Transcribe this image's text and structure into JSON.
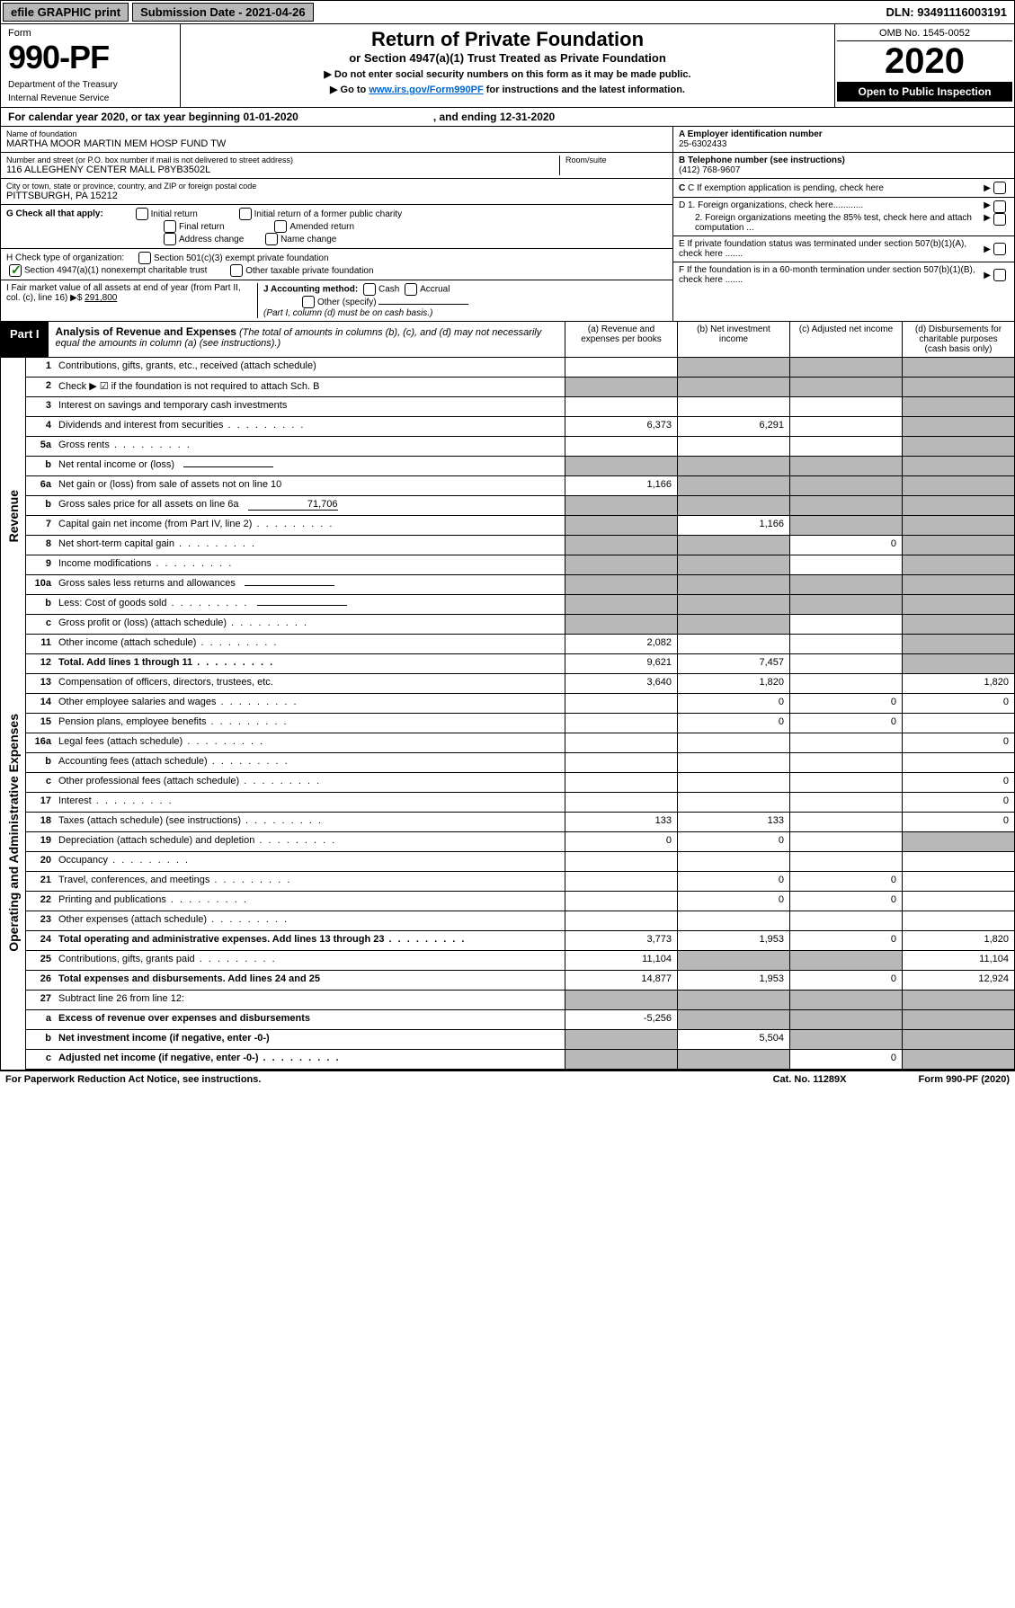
{
  "top": {
    "efile": "efile GRAPHIC print",
    "sub_date": "Submission Date - 2021-04-26",
    "dln": "DLN: 93491116003191"
  },
  "header": {
    "form_word": "Form",
    "form_num": "990-PF",
    "dept": "Department of the Treasury",
    "irs": "Internal Revenue Service",
    "title": "Return of Private Foundation",
    "subtitle": "or Section 4947(a)(1) Trust Treated as Private Foundation",
    "instr1": "▶ Do not enter social security numbers on this form as it may be made public.",
    "instr2_pre": "▶ Go to ",
    "instr2_link": "www.irs.gov/Form990PF",
    "instr2_post": " for instructions and the latest information.",
    "omb": "OMB No. 1545-0052",
    "year": "2020",
    "open": "Open to Public Inspection"
  },
  "cal": {
    "text_pre": "For calendar year 2020, or tax year beginning ",
    "begin": "01-01-2020",
    "mid": ", and ending ",
    "end": "12-31-2020"
  },
  "info": {
    "name_lbl": "Name of foundation",
    "name_val": "MARTHA MOOR MARTIN MEM HOSP FUND TW",
    "addr_lbl": "Number and street (or P.O. box number if mail is not delivered to street address)",
    "addr_val": "116 ALLEGHENY CENTER MALL P8YB3502L",
    "room_lbl": "Room/suite",
    "city_lbl": "City or town, state or province, country, and ZIP or foreign postal code",
    "city_val": "PITTSBURGH, PA  15212",
    "ein_lbl": "A Employer identification number",
    "ein_val": "25-6302433",
    "tel_lbl": "B Telephone number (see instructions)",
    "tel_val": "(412) 768-9607",
    "c_lbl": "C If exemption application is pending, check here",
    "d1": "D 1. Foreign organizations, check here............",
    "d2": "2. Foreign organizations meeting the 85% test, check here and attach computation ...",
    "e": "E  If private foundation status was terminated under section 507(b)(1)(A), check here .......",
    "f": "F  If the foundation is in a 60-month termination under section 507(b)(1)(B), check here ......."
  },
  "g": {
    "label": "G Check all that apply:",
    "opts": [
      "Initial return",
      "Final return",
      "Address change",
      "Initial return of a former public charity",
      "Amended return",
      "Name change"
    ]
  },
  "h": {
    "label": "H Check type of organization:",
    "o1": "Section 501(c)(3) exempt private foundation",
    "o2": "Section 4947(a)(1) nonexempt charitable trust",
    "o3": "Other taxable private foundation"
  },
  "i": {
    "label": "I Fair market value of all assets at end of year (from Part II, col. (c), line 16) ▶$",
    "val": "291,800"
  },
  "j": {
    "label": "J Accounting method:",
    "cash": "Cash",
    "accrual": "Accrual",
    "other": "Other (specify)",
    "note": "(Part I, column (d) must be on cash basis.)"
  },
  "part1": {
    "lbl": "Part I",
    "title": "Analysis of Revenue and Expenses",
    "sub": " (The total of amounts in columns (b), (c), and (d) may not necessarily equal the amounts in column (a) (see instructions).)",
    "cols": [
      "(a)   Revenue and expenses per books",
      "(b)  Net investment income",
      "(c)  Adjusted net income",
      "(d)  Disbursements for charitable purposes (cash basis only)"
    ]
  },
  "vlabels": {
    "rev": "Revenue",
    "exp": "Operating and Administrative Expenses"
  },
  "rows": [
    {
      "n": "1",
      "d": "Contributions, gifts, grants, etc., received (attach schedule)",
      "a": "",
      "b": "gray",
      "c": "gray",
      "dd": "gray"
    },
    {
      "n": "2",
      "d": "Check ▶ ☑ if the foundation is not required to attach Sch. B",
      "note": true,
      "a": "gray",
      "b": "gray",
      "c": "gray",
      "dd": "gray"
    },
    {
      "n": "3",
      "d": "Interest on savings and temporary cash investments",
      "a": "",
      "b": "",
      "c": "",
      "dd": "gray"
    },
    {
      "n": "4",
      "d": "Dividends and interest from securities",
      "dots": true,
      "a": "6,373",
      "b": "6,291",
      "c": "",
      "dd": "gray"
    },
    {
      "n": "5a",
      "d": "Gross rents",
      "dots": true,
      "a": "",
      "b": "",
      "c": "",
      "dd": "gray"
    },
    {
      "n": "b",
      "d": "Net rental income or (loss)",
      "ul": true,
      "a": "gray",
      "b": "gray",
      "c": "gray",
      "dd": "gray"
    },
    {
      "n": "6a",
      "d": "Net gain or (loss) from sale of assets not on line 10",
      "a": "1,166",
      "b": "gray",
      "c": "gray",
      "dd": "gray"
    },
    {
      "n": "b",
      "d": "Gross sales price for all assets on line 6a",
      "ulval": "71,706",
      "a": "gray",
      "b": "gray",
      "c": "gray",
      "dd": "gray"
    },
    {
      "n": "7",
      "d": "Capital gain net income (from Part IV, line 2)",
      "dots": true,
      "a": "gray",
      "b": "1,166",
      "c": "gray",
      "dd": "gray"
    },
    {
      "n": "8",
      "d": "Net short-term capital gain",
      "dots": true,
      "a": "gray",
      "b": "gray",
      "c": "0",
      "dd": "gray"
    },
    {
      "n": "9",
      "d": "Income modifications",
      "dots": true,
      "a": "gray",
      "b": "gray",
      "c": "",
      "dd": "gray"
    },
    {
      "n": "10a",
      "d": "Gross sales less returns and allowances",
      "ul": true,
      "a": "gray",
      "b": "gray",
      "c": "gray",
      "dd": "gray"
    },
    {
      "n": "b",
      "d": "Less: Cost of goods sold",
      "dots": true,
      "ul": true,
      "a": "gray",
      "b": "gray",
      "c": "gray",
      "dd": "gray"
    },
    {
      "n": "c",
      "d": "Gross profit or (loss) (attach schedule)",
      "dots": true,
      "a": "gray",
      "b": "gray",
      "c": "",
      "dd": "gray"
    },
    {
      "n": "11",
      "d": "Other income (attach schedule)",
      "dots": true,
      "a": "2,082",
      "b": "",
      "c": "",
      "dd": "gray"
    },
    {
      "n": "12",
      "d": "Total. Add lines 1 through 11",
      "bold": true,
      "dots": true,
      "a": "9,621",
      "b": "7,457",
      "c": "",
      "dd": "gray"
    }
  ],
  "exprows": [
    {
      "n": "13",
      "d": "Compensation of officers, directors, trustees, etc.",
      "a": "3,640",
      "b": "1,820",
      "c": "",
      "dd": "1,820"
    },
    {
      "n": "14",
      "d": "Other employee salaries and wages",
      "dots": true,
      "a": "",
      "b": "0",
      "c": "0",
      "dd": "0"
    },
    {
      "n": "15",
      "d": "Pension plans, employee benefits",
      "dots": true,
      "a": "",
      "b": "0",
      "c": "0",
      "dd": ""
    },
    {
      "n": "16a",
      "d": "Legal fees (attach schedule)",
      "dots": true,
      "a": "",
      "b": "",
      "c": "",
      "dd": "0"
    },
    {
      "n": "b",
      "d": "Accounting fees (attach schedule)",
      "dots": true,
      "a": "",
      "b": "",
      "c": "",
      "dd": ""
    },
    {
      "n": "c",
      "d": "Other professional fees (attach schedule)",
      "dots": true,
      "a": "",
      "b": "",
      "c": "",
      "dd": "0"
    },
    {
      "n": "17",
      "d": "Interest",
      "dots": true,
      "a": "",
      "b": "",
      "c": "",
      "dd": "0"
    },
    {
      "n": "18",
      "d": "Taxes (attach schedule) (see instructions)",
      "dots": true,
      "a": "133",
      "b": "133",
      "c": "",
      "dd": "0"
    },
    {
      "n": "19",
      "d": "Depreciation (attach schedule) and depletion",
      "dots": true,
      "a": "0",
      "b": "0",
      "c": "",
      "dd": "gray"
    },
    {
      "n": "20",
      "d": "Occupancy",
      "dots": true,
      "a": "",
      "b": "",
      "c": "",
      "dd": ""
    },
    {
      "n": "21",
      "d": "Travel, conferences, and meetings",
      "dots": true,
      "a": "",
      "b": "0",
      "c": "0",
      "dd": ""
    },
    {
      "n": "22",
      "d": "Printing and publications",
      "dots": true,
      "a": "",
      "b": "0",
      "c": "0",
      "dd": ""
    },
    {
      "n": "23",
      "d": "Other expenses (attach schedule)",
      "dots": true,
      "a": "",
      "b": "",
      "c": "",
      "dd": ""
    },
    {
      "n": "24",
      "d": "Total operating and administrative expenses. Add lines 13 through 23",
      "bold": true,
      "dots": true,
      "a": "3,773",
      "b": "1,953",
      "c": "0",
      "dd": "1,820"
    },
    {
      "n": "25",
      "d": "Contributions, gifts, grants paid",
      "dots": true,
      "a": "11,104",
      "b": "gray",
      "c": "gray",
      "dd": "11,104"
    },
    {
      "n": "26",
      "d": "Total expenses and disbursements. Add lines 24 and 25",
      "bold": true,
      "a": "14,877",
      "b": "1,953",
      "c": "0",
      "dd": "12,924"
    }
  ],
  "botrows": [
    {
      "n": "27",
      "d": "Subtract line 26 from line 12:",
      "a": "gray",
      "b": "gray",
      "c": "gray",
      "dd": "gray"
    },
    {
      "n": "a",
      "d": "Excess of revenue over expenses and disbursements",
      "bold": true,
      "a": "-5,256",
      "b": "gray",
      "c": "gray",
      "dd": "gray"
    },
    {
      "n": "b",
      "d": "Net investment income (if negative, enter -0-)",
      "bold": true,
      "a": "gray",
      "b": "5,504",
      "c": "gray",
      "dd": "gray"
    },
    {
      "n": "c",
      "d": "Adjusted net income (if negative, enter -0-)",
      "bold": true,
      "dots": true,
      "a": "gray",
      "b": "gray",
      "c": "0",
      "dd": "gray"
    }
  ],
  "footer": {
    "left": "For Paperwork Reduction Act Notice, see instructions.",
    "mid": "Cat. No. 11289X",
    "right": "Form 990-PF (2020)"
  }
}
